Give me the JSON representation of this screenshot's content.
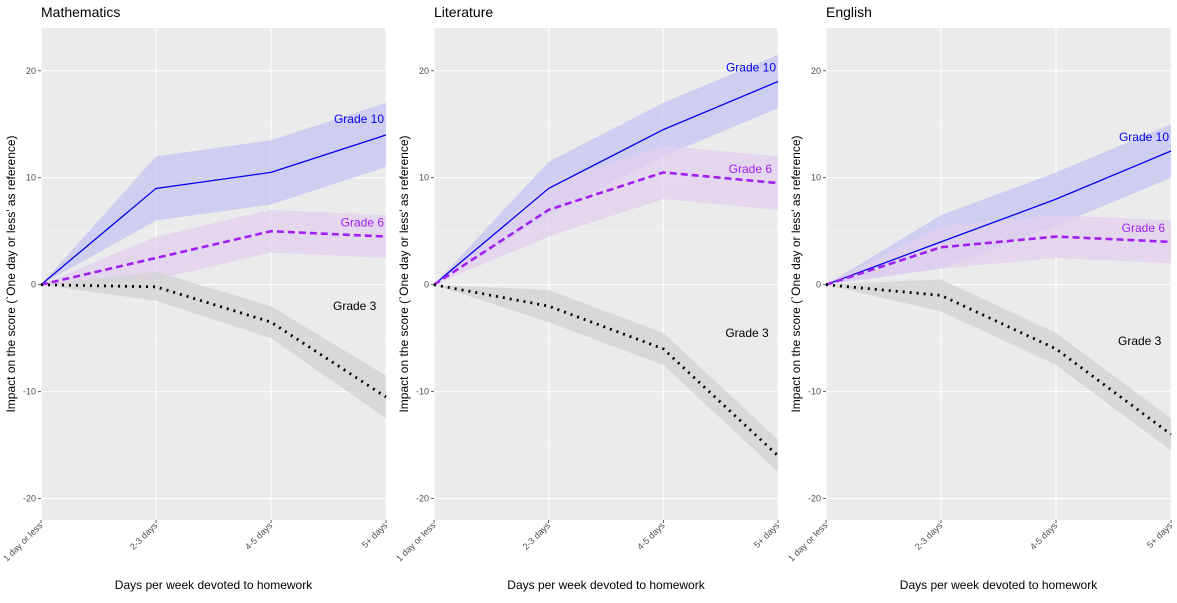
{
  "chart_data": [
    {
      "type": "line",
      "title": "Mathematics",
      "xlabel": "Days per week devoted to homework",
      "ylabel": "Impact on the score (`One day or less' as reference)",
      "categories": [
        "1 day or less",
        "2-3 days",
        "4-5 days",
        "5+ days"
      ],
      "ylim": [
        -22,
        24
      ],
      "yticks": [
        -20,
        -10,
        0,
        10,
        20
      ],
      "yticklabels": [
        "-20",
        "-10",
        "0",
        "10",
        "20"
      ],
      "background": "#ebebeb",
      "grid": true,
      "series": [
        {
          "name": "Grade 10",
          "label": "Grade 10",
          "color": "#0000ee",
          "fill": "#c4c4f2",
          "style": "solid",
          "values": [
            0,
            9,
            10.5,
            14
          ],
          "lower": [
            0,
            6,
            7.5,
            11
          ],
          "upper": [
            0,
            12,
            13.5,
            17
          ]
        },
        {
          "name": "Grade 6",
          "label": "Grade 6",
          "color": "#a020f0",
          "fill": "#e2d0ee",
          "style": "dashed",
          "values": [
            0,
            2.5,
            5,
            4.5
          ],
          "lower": [
            0,
            0.5,
            3,
            2.5
          ],
          "upper": [
            0,
            4.5,
            7,
            6.5
          ]
        },
        {
          "name": "Grade 3",
          "label": "Grade 3",
          "color": "#000000",
          "fill": "#d2d2d2",
          "style": "dotted",
          "values": [
            0,
            -0.2,
            -3.5,
            -10.5
          ],
          "lower": [
            0,
            -1.5,
            -5,
            -12.5
          ],
          "upper": [
            0,
            1.2,
            -2,
            -8.5
          ]
        }
      ]
    },
    {
      "type": "line",
      "title": "Literature",
      "xlabel": "Days per week devoted to homework",
      "ylabel": "Impact on the score (`One day or less' as reference)",
      "categories": [
        "1 day or less",
        "2-3 days",
        "4-5 days",
        "5+ days"
      ],
      "ylim": [
        -22,
        24
      ],
      "yticks": [
        -20,
        -10,
        0,
        10,
        20
      ],
      "yticklabels": [
        "-20",
        "-10",
        "0",
        "10",
        "20"
      ],
      "background": "#ebebeb",
      "grid": true,
      "series": [
        {
          "name": "Grade 10",
          "label": "Grade 10",
          "color": "#0000ee",
          "fill": "#c4c4f2",
          "style": "solid",
          "values": [
            0,
            9,
            14.5,
            19
          ],
          "lower": [
            0,
            6.5,
            12,
            16.5
          ],
          "upper": [
            0,
            11.5,
            17,
            21.5
          ]
        },
        {
          "name": "Grade 6",
          "label": "Grade 6",
          "color": "#a020f0",
          "fill": "#e2d0ee",
          "style": "dashed",
          "values": [
            0,
            7,
            10.5,
            9.5
          ],
          "lower": [
            0,
            4.5,
            8,
            7
          ],
          "upper": [
            0,
            9.5,
            13,
            12
          ]
        },
        {
          "name": "Grade 3",
          "label": "Grade 3",
          "color": "#000000",
          "fill": "#d2d2d2",
          "style": "dotted",
          "values": [
            0,
            -2,
            -6,
            -16
          ],
          "lower": [
            0,
            -3.5,
            -7.5,
            -17.5
          ],
          "upper": [
            0,
            -0.5,
            -4.5,
            -14.5
          ]
        }
      ]
    },
    {
      "type": "line",
      "title": "English",
      "xlabel": "Days per week devoted to homework",
      "ylabel": "Impact on the score (`One day or less' as reference)",
      "categories": [
        "1 day or less",
        "2-3 days",
        "4-5 days",
        "5+ days"
      ],
      "ylim": [
        -22,
        24
      ],
      "yticks": [
        -20,
        -10,
        0,
        10,
        20
      ],
      "yticklabels": [
        "-20",
        "-10",
        "0",
        "10",
        "20"
      ],
      "background": "#ebebeb",
      "grid": true,
      "series": [
        {
          "name": "Grade 10",
          "label": "Grade 10",
          "color": "#0000ee",
          "fill": "#c4c4f2",
          "style": "solid",
          "values": [
            0,
            4,
            8,
            12.5
          ],
          "lower": [
            0,
            1.5,
            5.5,
            10
          ],
          "upper": [
            0,
            6.5,
            10.5,
            15
          ]
        },
        {
          "name": "Grade 6",
          "label": "Grade 6",
          "color": "#a020f0",
          "fill": "#e2d0ee",
          "style": "dashed",
          "values": [
            0,
            3.5,
            4.5,
            4
          ],
          "lower": [
            0,
            1.5,
            2.5,
            2
          ],
          "upper": [
            0,
            5.5,
            6.5,
            6
          ]
        },
        {
          "name": "Grade 3",
          "label": "Grade 3",
          "color": "#000000",
          "fill": "#d2d2d2",
          "style": "dotted",
          "values": [
            0,
            -1,
            -6,
            -14
          ],
          "lower": [
            0,
            -2.5,
            -7.5,
            -15.5
          ],
          "upper": [
            0,
            0.5,
            -4.5,
            -12.5
          ]
        }
      ]
    }
  ]
}
